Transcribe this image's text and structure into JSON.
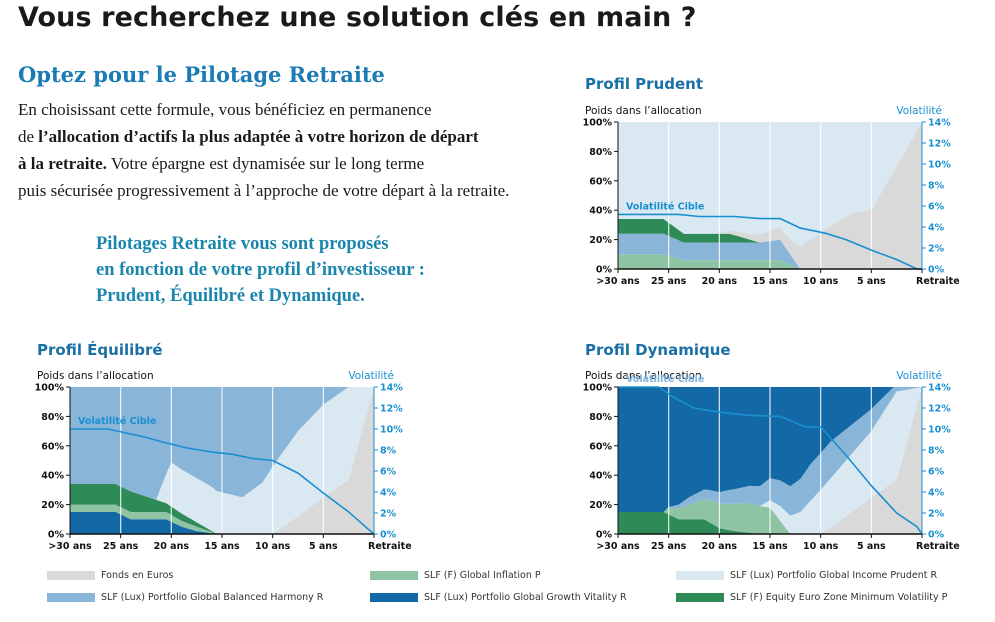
{
  "page": {
    "title": "Vous recherchez une solution clés en main ?",
    "intro": {
      "heading": "Optez pour le Pilotage Retraite",
      "line1": "En choisissant cette formule, vous bénéficiez en permanence",
      "line2_pre": "de ",
      "line2_bold": "l’allocation d’actifs la plus adaptée à votre horizon de départ",
      "line3_bold": "à la retraite.",
      "line3_post": " Votre épargne est dynamisée sur le long terme",
      "line4": "puis sécurisée progressivement à l’approche de votre départ à la retraite."
    },
    "callout": {
      "line1": "Pilotages Retraite vous sont proposés",
      "line2": "en fonction de votre profil d’investisseur :",
      "line3": "Prudent, Équilibré et Dynamique."
    }
  },
  "colors": {
    "fonds_euros": "#d9d9d9",
    "global_inflation": "#8ec4a4",
    "income_prudent": "#dae8f2",
    "balanced_harmony": "#89b5d9",
    "growth_vitality": "#1369a5",
    "min_volatility": "#2e8b57",
    "volatility_line": "#1a8fd0",
    "chart_title": "#1a6fa5"
  },
  "chart_data": [
    {
      "id": "prudent",
      "type": "area",
      "title": "Profil Prudent",
      "ylabel": "Poids dans l’allocation",
      "y2label": "Volatilité",
      "target_label": "Volatilité Cible",
      "target_label_on_dark": false,
      "x": [
        0,
        1,
        2,
        3,
        4,
        5,
        6
      ],
      "categories": [
        ">30 ans",
        "25 ans",
        "20 ans",
        "15 ans",
        "10 ans",
        "5 ans",
        "Retraite"
      ],
      "ylim": [
        0,
        100
      ],
      "y2lim": [
        0,
        14
      ],
      "yticks": [
        "0%",
        "20%",
        "40%",
        "60%",
        "80%",
        "100%"
      ],
      "y2ticks": [
        "0%",
        "2%",
        "4%",
        "6%",
        "8%",
        "10%",
        "12%",
        "14%"
      ],
      "stack_order": [
        "SLF (F) Global Inflation P",
        "SLF (Lux) Portfolio Global Balanced Harmony R",
        "SLF (F) Equity Euro Zone Minimum Volatility P",
        "Fonds en Euros",
        "SLF (Lux) Portfolio Global Income Prudent R"
      ],
      "series": [
        {
          "name": "SLF (F) Global Inflation P",
          "color_key": "global_inflation",
          "x": [
            0,
            0.9,
            1.3,
            2.2,
            2.8,
            3.2,
            3.6
          ],
          "values": [
            10,
            10,
            6,
            6,
            6,
            6,
            0
          ]
        },
        {
          "name": "SLF (Lux) Portfolio Global Balanced Harmony R",
          "color_key": "balanced_harmony",
          "x": [
            0,
            0.9,
            1.3,
            2.2,
            2.8,
            3.2,
            3.6
          ],
          "values": [
            14,
            14,
            12,
            12,
            12,
            14,
            0
          ]
        },
        {
          "name": "SLF (F) Equity Euro Zone Minimum Volatility P",
          "color_key": "min_volatility",
          "x": [
            0,
            0.9,
            1.3,
            2.2,
            2.8,
            3.2,
            3.6
          ],
          "values": [
            10,
            10,
            6,
            6,
            0,
            0,
            0
          ]
        },
        {
          "name": "Fonds en Euros",
          "color_key": "fonds_euros",
          "x": [
            0,
            1.8,
            2.6,
            3.4,
            4.0,
            4.6,
            5.0,
            6.0
          ],
          "values": [
            0,
            0,
            4,
            10,
            25,
            38,
            40,
            100
          ]
        },
        {
          "name": "SLF (Lux) Portfolio Global Income Prudent R",
          "color_key": "income_prudent",
          "fill": "remainder"
        }
      ],
      "volatility": {
        "x": [
          0,
          1.2,
          1.6,
          2.3,
          2.8,
          3.2,
          3.6,
          4.1,
          4.5,
          5.0,
          5.5,
          5.9,
          6.0
        ],
        "values": [
          5.2,
          5.2,
          5.0,
          5.0,
          4.8,
          4.8,
          3.9,
          3.4,
          2.8,
          1.8,
          0.9,
          0,
          0
        ]
      }
    },
    {
      "id": "equilibre",
      "type": "area",
      "title": "Profil Équilibré",
      "ylabel": "Poids dans l’allocation",
      "y2label": "Volatilité",
      "target_label": "Volatilité Cible",
      "target_label_on_dark": false,
      "x": [
        0,
        1,
        2,
        3,
        4,
        5,
        6
      ],
      "categories": [
        ">30 ans",
        "25 ans",
        "20 ans",
        "15 ans",
        "10 ans",
        "5 ans",
        "Retraite"
      ],
      "ylim": [
        0,
        100
      ],
      "y2lim": [
        0,
        14
      ],
      "yticks": [
        "0%",
        "20%",
        "40%",
        "60%",
        "80%",
        "100%"
      ],
      "y2ticks": [
        "0%",
        "2%",
        "4%",
        "6%",
        "8%",
        "10%",
        "12%",
        "14%"
      ],
      "stack_order": [
        "SLF (Lux) Portfolio Global Growth Vitality R",
        "SLF (F) Global Inflation P",
        "SLF (F) Equity Euro Zone Minimum Volatility P",
        "Fonds en Euros",
        "SLF (Lux) Portfolio Global Income Prudent R",
        "SLF (Lux) Portfolio Global Balanced Harmony R"
      ],
      "series": [
        {
          "name": "SLF (Lux) Portfolio Global Growth Vitality R",
          "color_key": "growth_vitality",
          "x": [
            0,
            0.9,
            1.2,
            1.9,
            2.2,
            2.5,
            2.9
          ],
          "values": [
            15,
            15,
            10,
            10,
            5,
            2,
            0
          ]
        },
        {
          "name": "SLF (F) Global Inflation P",
          "color_key": "global_inflation",
          "x": [
            0,
            0.9,
            1.2,
            1.9,
            2.2,
            2.5,
            2.9
          ],
          "values": [
            5,
            5,
            5,
            5,
            4,
            3,
            0
          ]
        },
        {
          "name": "SLF (F) Equity Euro Zone Minimum Volatility P",
          "color_key": "min_volatility",
          "x": [
            0,
            0.9,
            1.2,
            1.9,
            2.2,
            2.5,
            2.9
          ],
          "values": [
            14,
            14,
            14,
            6,
            5,
            3,
            0
          ]
        },
        {
          "name": "Fonds en Euros",
          "color_key": "fonds_euros",
          "x": [
            0,
            4.0,
            4.5,
            5.0,
            5.5,
            6.0
          ],
          "values": [
            0,
            0,
            12,
            25,
            37,
            100
          ]
        },
        {
          "name": "SLF (Lux) Portfolio Global Income Prudent R",
          "color_key": "income_prudent",
          "x": [
            0,
            1.7,
            2.0,
            2.8,
            3.4,
            3.8,
            4.0,
            4.5,
            5.0,
            5.5,
            6.0
          ],
          "values": [
            0,
            0,
            30,
            30,
            25,
            35,
            46,
            58,
            63,
            63,
            0
          ]
        },
        {
          "name": "SLF (Lux) Portfolio Global Balanced Harmony R",
          "color_key": "balanced_harmony",
          "fill": "remainder"
        }
      ],
      "volatility": {
        "x": [
          0,
          0.75,
          1.5,
          1.8,
          2.3,
          2.8,
          3.2,
          3.6,
          4.0,
          4.5,
          5.0,
          5.5,
          5.9,
          6.0
        ],
        "values": [
          10.0,
          10.0,
          9.2,
          8.8,
          8.2,
          7.8,
          7.6,
          7.2,
          7.0,
          5.8,
          3.9,
          2.1,
          0.4,
          0
        ]
      }
    },
    {
      "id": "dynamique",
      "type": "area",
      "title": "Profil Dynamique",
      "ylabel": "Poids dans l’allocation",
      "y2label": "Volatilité",
      "target_label": "Volatilité Cible",
      "target_label_on_dark": true,
      "x": [
        0,
        1,
        2,
        3,
        4,
        5,
        6
      ],
      "categories": [
        ">30 ans",
        "25 ans",
        "20 ans",
        "15 ans",
        "10 ans",
        "5 ans",
        "Retraite"
      ],
      "ylim": [
        0,
        100
      ],
      "y2lim": [
        0,
        14
      ],
      "yticks": [
        "0%",
        "20%",
        "40%",
        "60%",
        "80%",
        "100%"
      ],
      "y2ticks": [
        "0%",
        "2%",
        "4%",
        "6%",
        "8%",
        "10%",
        "12%",
        "14%"
      ],
      "stack_order": [
        "SLF (F) Equity Euro Zone Minimum Volatility P",
        "SLF (F) Global Inflation P",
        "Fonds en Euros",
        "SLF (Lux) Portfolio Global Income Prudent R",
        "SLF (Lux) Portfolio Global Balanced Harmony R",
        "SLF (Lux) Portfolio Global Growth Vitality R"
      ],
      "series": [
        {
          "name": "SLF (F) Equity Euro Zone Minimum Volatility P",
          "color_key": "min_volatility",
          "x": [
            0,
            0.9,
            1.2,
            1.7,
            2.0,
            2.3,
            2.8,
            3.2
          ],
          "values": [
            15,
            15,
            10,
            10,
            4,
            2,
            0,
            0
          ]
        },
        {
          "name": "SLF (F) Global Inflation P",
          "color_key": "global_inflation",
          "x": [
            0,
            0.9,
            1.0,
            1.4,
            1.8,
            2.2,
            2.6,
            3.0,
            3.4
          ],
          "values": [
            0,
            0,
            5,
            10,
            15,
            18,
            20,
            18,
            0
          ]
        },
        {
          "name": "Fonds en Euros",
          "color_key": "fonds_euros",
          "x": [
            0,
            4.0,
            4.5,
            5.0,
            5.5,
            6.0
          ],
          "values": [
            0,
            0,
            12,
            25,
            37,
            100
          ]
        },
        {
          "name": "SLF (Lux) Portfolio Global Income Prudent R",
          "color_key": "income_prudent",
          "x": [
            0,
            2.8,
            3.2,
            3.6,
            4.0,
            4.5,
            5.0,
            5.5,
            6.0
          ],
          "values": [
            0,
            0,
            10,
            15,
            30,
            38,
            45,
            60,
            0
          ]
        },
        {
          "name": "SLF (Lux) Portfolio Global Balanced Harmony R",
          "color_key": "balanced_harmony",
          "x": [
            0,
            1.0,
            1.4,
            2.0,
            2.6,
            3.0,
            3.4,
            3.8,
            4.2,
            4.6,
            5.0,
            5.5,
            6.0
          ],
          "values": [
            0,
            0,
            5,
            8,
            12,
            15,
            20,
            25,
            25,
            20,
            15,
            5,
            0
          ]
        },
        {
          "name": "SLF (Lux) Portfolio Global Growth Vitality R",
          "color_key": "growth_vitality",
          "fill": "remainder"
        }
      ],
      "volatility": {
        "x": [
          0,
          0.8,
          1.1,
          1.5,
          2.0,
          2.6,
          3.2,
          3.7,
          4.0,
          4.5,
          5.0,
          5.5,
          5.9,
          6.0
        ],
        "values": [
          14,
          14,
          13.0,
          12.0,
          11.6,
          11.3,
          11.2,
          10.2,
          10.2,
          7.5,
          4.6,
          2.0,
          0.7,
          0
        ]
      }
    }
  ],
  "legend": [
    {
      "label": "Fonds en Euros",
      "color_key": "fonds_euros"
    },
    {
      "label": "SLF (F) Global Inflation P",
      "color_key": "global_inflation"
    },
    {
      "label": "SLF (Lux) Portfolio Global Income Prudent R",
      "color_key": "income_prudent"
    },
    {
      "label": "SLF (Lux) Portfolio Global Balanced Harmony R",
      "color_key": "balanced_harmony"
    },
    {
      "label": "SLF (Lux) Portfolio Global Growth Vitality R",
      "color_key": "growth_vitality"
    },
    {
      "label": "SLF (F) Equity Euro Zone Minimum Volatility P",
      "color_key": "min_volatility"
    }
  ]
}
